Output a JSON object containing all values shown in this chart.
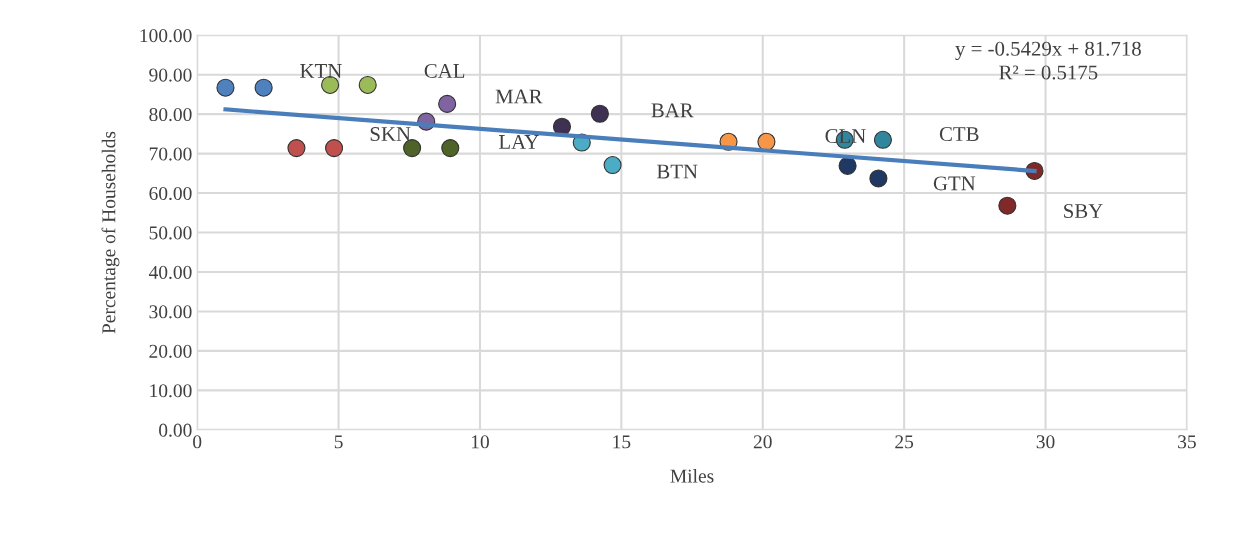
{
  "chart_data": {
    "type": "scatter",
    "xlabel": "Miles",
    "ylabel": "Percentage of Households",
    "xlim": [
      0,
      35
    ],
    "xticks": [
      0,
      5,
      10,
      15,
      20,
      25,
      30,
      35
    ],
    "ylim": [
      0,
      100
    ],
    "yticks": [
      {
        "value": 0,
        "label": "0.00"
      },
      {
        "value": 10,
        "label": "10.00"
      },
      {
        "value": 20,
        "label": "20.00"
      },
      {
        "value": 30,
        "label": "30.00"
      },
      {
        "value": 40,
        "label": "40.00"
      },
      {
        "value": 50,
        "label": "50.00"
      },
      {
        "value": 60,
        "label": "60.00"
      },
      {
        "value": 70,
        "label": "70.00"
      },
      {
        "value": 80,
        "label": "80.00"
      },
      {
        "value": 90,
        "label": "90.00"
      },
      {
        "value": 100,
        "label": "100.00"
      }
    ],
    "grid": true,
    "marker": "circle",
    "series": [
      {
        "color": "#4f81bd",
        "x": [
          1.0,
          2.35
        ],
        "values": [
          86.7,
          86.7
        ]
      },
      {
        "color": "#c0504d",
        "x": [
          3.51,
          4.84
        ],
        "values": [
          71.4,
          71.4
        ]
      },
      {
        "color": "#9bbb59",
        "x": [
          4.7,
          6.03
        ],
        "values": [
          87.4,
          87.4
        ]
      },
      {
        "color": "#4f6228",
        "x": [
          7.6,
          8.95
        ],
        "values": [
          71.4,
          71.4
        ]
      },
      {
        "color": "#8064a2",
        "x": [
          8.84,
          8.1
        ],
        "values": [
          82.6,
          78.1
        ]
      },
      {
        "color": "#3f3151",
        "x": [
          12.9,
          14.24
        ],
        "values": [
          76.8,
          80.1
        ]
      },
      {
        "color": "#4bacc6",
        "x": [
          13.6,
          14.69
        ],
        "values": [
          72.8,
          67.1
        ]
      },
      {
        "color": "#f79646",
        "x": [
          18.79,
          20.13
        ],
        "values": [
          73.0,
          73.0
        ]
      },
      {
        "color": "#31859c",
        "x": [
          22.9,
          24.25
        ],
        "values": [
          73.5,
          73.5
        ]
      },
      {
        "color": "#1f3864",
        "x": [
          23.0,
          24.09
        ],
        "values": [
          66.9,
          63.7
        ]
      },
      {
        "color": "#7f2a28",
        "x": [
          29.61,
          28.65
        ],
        "values": [
          65.6,
          56.8
        ]
      },
      {
        "type": "line",
        "color": "#4a7ebb",
        "x": [
          1.0,
          29.61
        ],
        "values": [
          81.2,
          65.6
        ],
        "marker": "none"
      }
    ],
    "annotations": [
      "y = -0.5429x + 81.718",
      "R² = 0.5175",
      "KTN",
      "CAL",
      "MAR",
      "BAR",
      "CLN",
      "CTB",
      "SKN",
      "LAY",
      "BTN",
      "GTN",
      "SBY"
    ]
  }
}
